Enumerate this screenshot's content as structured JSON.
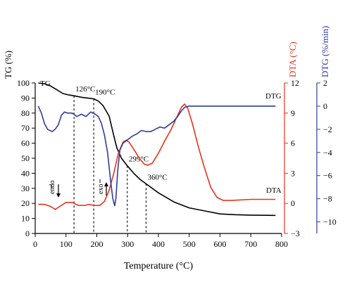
{
  "chart_data": {
    "type": "line",
    "xlabel": "Temperature (°C)",
    "xlim": [
      0,
      800
    ],
    "x_ticks": [
      0,
      100,
      200,
      300,
      400,
      500,
      600,
      700,
      800
    ],
    "axes": {
      "tg": {
        "label": "TG (%)",
        "lim": [
          0,
          100
        ],
        "ticks": [
          0,
          10,
          20,
          30,
          40,
          50,
          60,
          70,
          80,
          90,
          100
        ],
        "color": "#000000"
      },
      "dta": {
        "label": "DTA (°C)",
        "lim": [
          -3,
          12
        ],
        "ticks": [
          -3,
          0,
          3,
          6,
          9,
          12
        ],
        "color": "#e8321e"
      },
      "dtg": {
        "label": "DTG (%/min)",
        "lim": [
          -11,
          2
        ],
        "ticks": [
          -10,
          -8,
          -6,
          -4,
          -2,
          0,
          2
        ],
        "color": "#2f3c9e"
      }
    },
    "series": [
      {
        "name": "TG",
        "axis": "tg",
        "color": "#000000",
        "points": [
          [
            10,
            100
          ],
          [
            30,
            99.5
          ],
          [
            50,
            98
          ],
          [
            70,
            95.5
          ],
          [
            90,
            93
          ],
          [
            110,
            92
          ],
          [
            126,
            91.5
          ],
          [
            150,
            90.5
          ],
          [
            170,
            90
          ],
          [
            190,
            89.5
          ],
          [
            205,
            88
          ],
          [
            220,
            85
          ],
          [
            240,
            78
          ],
          [
            255,
            65
          ],
          [
            265,
            57
          ],
          [
            280,
            50
          ],
          [
            299,
            45
          ],
          [
            320,
            40
          ],
          [
            340,
            36
          ],
          [
            360,
            33
          ],
          [
            400,
            27
          ],
          [
            450,
            21
          ],
          [
            500,
            17
          ],
          [
            550,
            15
          ],
          [
            600,
            13
          ],
          [
            650,
            12.5
          ],
          [
            700,
            12.2
          ],
          [
            780,
            12
          ]
        ]
      },
      {
        "name": "DTA",
        "axis": "dta",
        "color": "#e8321e",
        "points": [
          [
            10,
            -0.1
          ],
          [
            30,
            -0.1
          ],
          [
            50,
            -0.3
          ],
          [
            65,
            -0.6
          ],
          [
            80,
            -0.3
          ],
          [
            100,
            0.1
          ],
          [
            120,
            0.1
          ],
          [
            140,
            -0.2
          ],
          [
            160,
            -0.2
          ],
          [
            175,
            -0.1
          ],
          [
            190,
            -0.2
          ],
          [
            210,
            -0.2
          ],
          [
            225,
            0.2
          ],
          [
            240,
            1.3
          ],
          [
            255,
            3
          ],
          [
            270,
            5
          ],
          [
            285,
            6.1
          ],
          [
            295,
            6.3
          ],
          [
            305,
            6.1
          ],
          [
            320,
            5.4
          ],
          [
            340,
            4.4
          ],
          [
            355,
            3.9
          ],
          [
            365,
            3.8
          ],
          [
            380,
            4
          ],
          [
            400,
            5
          ],
          [
            420,
            6.2
          ],
          [
            440,
            7.3
          ],
          [
            460,
            8.6
          ],
          [
            475,
            9.6
          ],
          [
            485,
            9.9
          ],
          [
            495,
            9.5
          ],
          [
            510,
            8
          ],
          [
            530,
            5.6
          ],
          [
            550,
            3.5
          ],
          [
            570,
            1.6
          ],
          [
            590,
            0.6
          ],
          [
            610,
            0.3
          ],
          [
            640,
            0.3
          ],
          [
            700,
            0.4
          ],
          [
            780,
            0.4
          ]
        ]
      },
      {
        "name": "DTG",
        "axis": "dtg",
        "color": "#2f3c9e",
        "points": [
          [
            10,
            0
          ],
          [
            20,
            -0.6
          ],
          [
            30,
            -1.5
          ],
          [
            40,
            -2
          ],
          [
            55,
            -2.2
          ],
          [
            65,
            -2
          ],
          [
            75,
            -1.6
          ],
          [
            85,
            -0.8
          ],
          [
            95,
            -0.5
          ],
          [
            105,
            -0.6
          ],
          [
            120,
            -0.6
          ],
          [
            135,
            -0.9
          ],
          [
            150,
            -0.7
          ],
          [
            165,
            -0.9
          ],
          [
            180,
            -0.5
          ],
          [
            195,
            -0.7
          ],
          [
            205,
            -0.9
          ],
          [
            215,
            -1.5
          ],
          [
            225,
            -2.5
          ],
          [
            235,
            -4
          ],
          [
            245,
            -6.5
          ],
          [
            252,
            -8
          ],
          [
            258,
            -8.6
          ],
          [
            262,
            -8
          ],
          [
            268,
            -5.5
          ],
          [
            275,
            -3.8
          ],
          [
            285,
            -3.2
          ],
          [
            300,
            -2.9
          ],
          [
            315,
            -2.6
          ],
          [
            330,
            -2.4
          ],
          [
            345,
            -2.1
          ],
          [
            360,
            -2.2
          ],
          [
            375,
            -2.2
          ],
          [
            390,
            -2
          ],
          [
            405,
            -1.8
          ],
          [
            420,
            -1.9
          ],
          [
            435,
            -1.6
          ],
          [
            450,
            -1.3
          ],
          [
            465,
            -0.8
          ],
          [
            475,
            -0.4
          ],
          [
            485,
            -0.1
          ],
          [
            500,
            0
          ],
          [
            550,
            0
          ],
          [
            600,
            0
          ],
          [
            650,
            0
          ],
          [
            700,
            0
          ],
          [
            780,
            0
          ]
        ]
      }
    ],
    "annotations": {
      "tg_series_label": "TG",
      "dta_series_label": "DTA",
      "dtg_series_label": "DTG",
      "endo_label": "endo",
      "exo_label": "exo",
      "markers": [
        {
          "x": 126,
          "label": "126°C"
        },
        {
          "x": 190,
          "label": "190°C"
        },
        {
          "x": 299,
          "label": "299°C"
        },
        {
          "x": 360,
          "label": "360°C"
        }
      ]
    },
    "grid": false
  }
}
